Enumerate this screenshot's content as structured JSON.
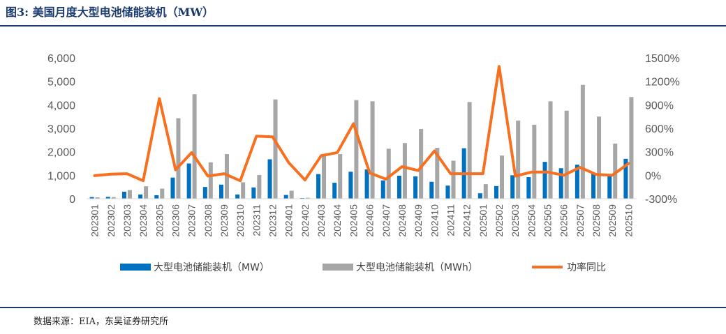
{
  "figure": {
    "title": "图3: 美国月度大型电池储能装机（MW）",
    "source": "数据来源：EIA，东吴证券研究所"
  },
  "chart_data": {
    "type": "bar",
    "title": "图3: 美国月度大型电池储能装机（MW）",
    "categories": [
      "202301",
      "202302",
      "202303",
      "202304",
      "202305",
      "202306",
      "202307",
      "202308",
      "202309",
      "202310",
      "202311",
      "202312",
      "202401",
      "202402",
      "202403",
      "202404",
      "202405",
      "202406",
      "202407",
      "202408",
      "202409",
      "202410",
      "202411",
      "202412",
      "202501",
      "202502",
      "202503",
      "202504",
      "202505",
      "202506",
      "202507",
      "202508",
      "202509",
      "202510"
    ],
    "series": [
      {
        "name": "大型电池储能装机（MW）",
        "type": "bar",
        "axis": "left",
        "color": "#0070c0",
        "values": [
          70,
          80,
          300,
          180,
          150,
          900,
          1500,
          500,
          600,
          180,
          480,
          1680,
          160,
          30,
          1050,
          680,
          1150,
          1250,
          780,
          980,
          950,
          720,
          560,
          2150,
          230,
          540,
          1000,
          920,
          1570,
          1300,
          1450,
          1080,
          1000,
          1700
        ]
      },
      {
        "name": "大型电池储能装机（MWh）",
        "type": "bar",
        "axis": "left",
        "color": "#a6a6a6",
        "values": [
          60,
          70,
          370,
          530,
          430,
          3430,
          4450,
          1550,
          1900,
          700,
          1010,
          4230,
          340,
          40,
          1900,
          1900,
          4200,
          4150,
          2130,
          2370,
          2970,
          2170,
          1620,
          4120,
          620,
          1840,
          3330,
          3150,
          4150,
          3750,
          4850,
          3500,
          2350,
          4330
        ]
      },
      {
        "name": "功率同比",
        "type": "line",
        "axis": "right",
        "color": "#f7701f",
        "values": [
          -5,
          15,
          20,
          -70,
          980,
          70,
          290,
          -10,
          20,
          -70,
          500,
          490,
          160,
          -60,
          250,
          290,
          660,
          30,
          -50,
          110,
          60,
          310,
          20,
          20,
          20,
          1390,
          -10,
          40,
          40,
          0,
          100,
          10,
          0,
          150
        ]
      }
    ],
    "y_left": {
      "min": 0,
      "max": 6000,
      "ticks": [
        "0",
        "1,000",
        "2,000",
        "3,000",
        "4,000",
        "5,000",
        "6,000"
      ]
    },
    "y_right": {
      "min": -300,
      "max": 1500,
      "ticks": [
        "-300%",
        "0%",
        "300%",
        "600%",
        "900%",
        "1200%",
        "1500%"
      ]
    },
    "grid": false,
    "legend": "bottom"
  }
}
